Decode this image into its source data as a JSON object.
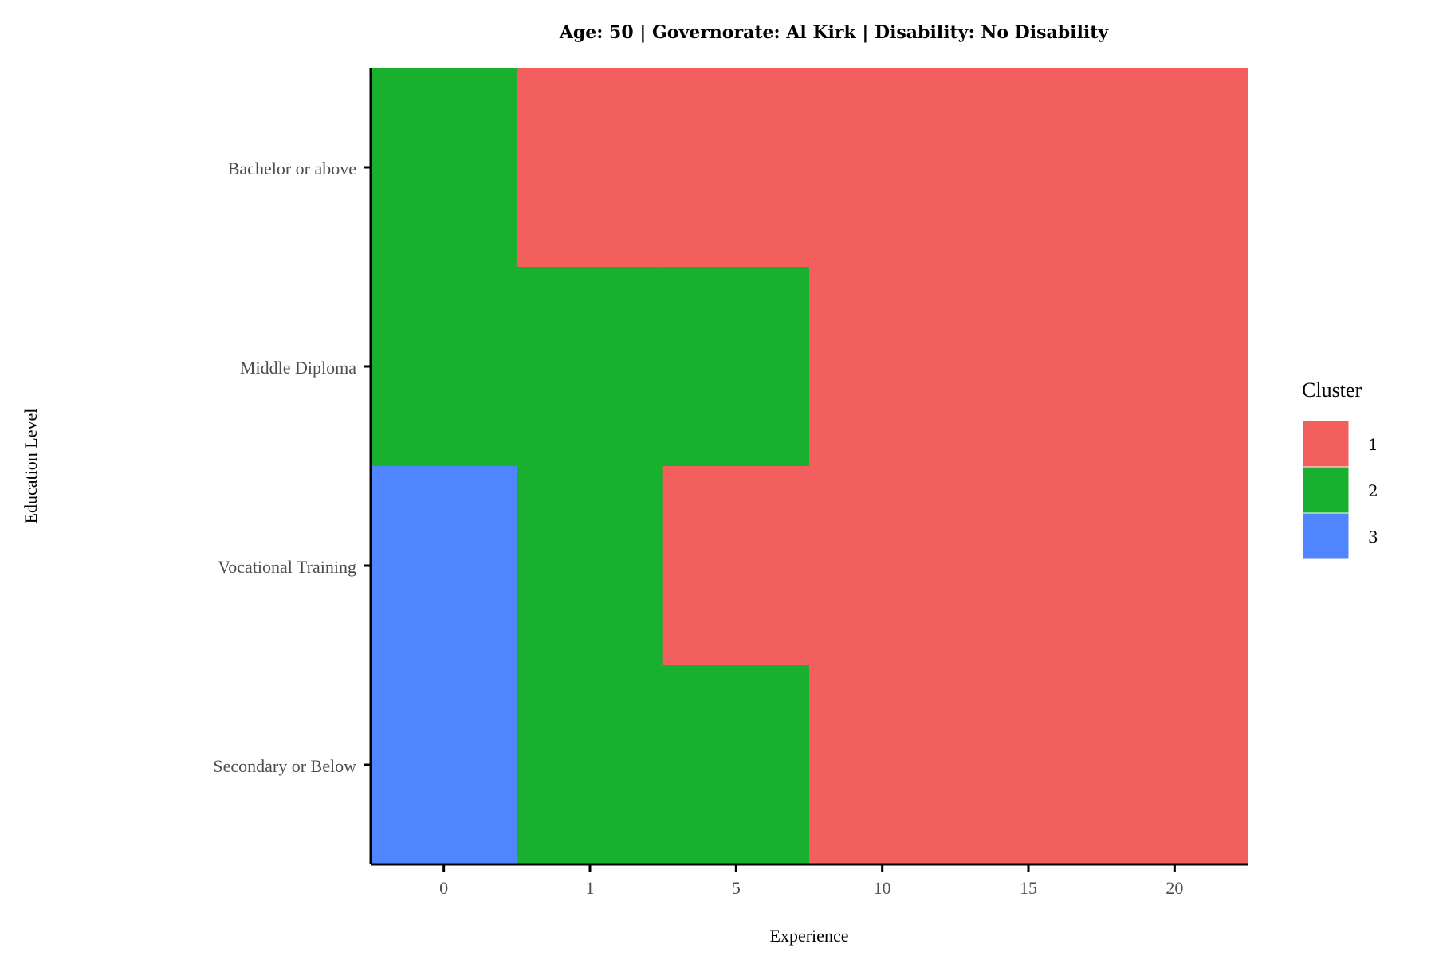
{
  "chart_data": {
    "type": "heatmap",
    "title": "Age: 50 | Governorate: Al Kirk | Disability: No Disability",
    "xlabel": "Experience",
    "ylabel": "Education Level",
    "x_categories": [
      "0",
      "1",
      "5",
      "10",
      "15",
      "20"
    ],
    "y_categories": [
      "Bachelor or above",
      "Middle Diploma",
      "Vocational Training",
      "Secondary or Below"
    ],
    "values": [
      [
        2,
        1,
        1,
        1,
        1,
        1
      ],
      [
        2,
        2,
        2,
        1,
        1,
        1
      ],
      [
        3,
        2,
        1,
        1,
        1,
        1
      ],
      [
        3,
        2,
        2,
        1,
        1,
        1
      ]
    ],
    "legend": {
      "title": "Cluster",
      "placement": "right",
      "entries": [
        {
          "label": "1",
          "color": "#F25F5C"
        },
        {
          "label": "2",
          "color": "#18B02E"
        },
        {
          "label": "3",
          "color": "#4F86FF"
        }
      ]
    },
    "grid": false
  }
}
